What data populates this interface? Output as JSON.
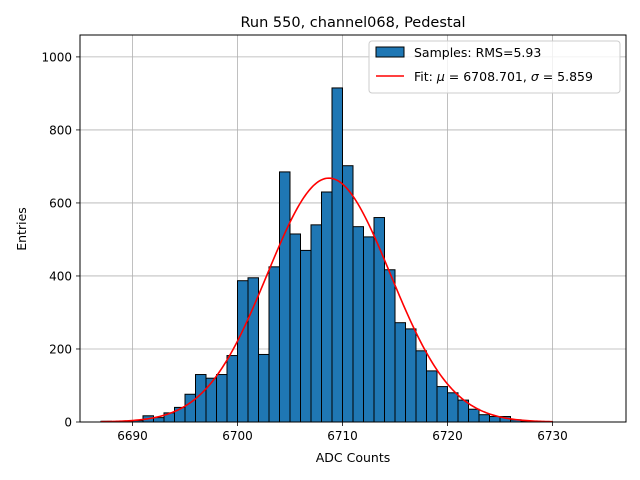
{
  "chart_data": {
    "type": "bar",
    "title": "Run 550, channel068, Pedestal",
    "xlabel": "ADC Counts",
    "ylabel": "Entries",
    "xlim": [
      6685,
      6737
    ],
    "ylim": [
      0,
      1060
    ],
    "xticks": [
      6690,
      6700,
      6710,
      6720,
      6730
    ],
    "yticks": [
      0,
      200,
      400,
      600,
      800,
      1000
    ],
    "grid": true,
    "legend_position": "top-right",
    "bin_width": 1,
    "colors": {
      "bars": "#1f77b4",
      "bar_edge": "#000000",
      "fit": "#ff0000",
      "grid": "#b0b0b0"
    },
    "series": [
      {
        "name": "Samples: RMS=5.93",
        "kind": "histogram",
        "bin_edges": [
          6687,
          6688,
          6689,
          6690,
          6691,
          6692,
          6693,
          6694,
          6695,
          6696,
          6697,
          6698,
          6699,
          6700,
          6701,
          6702,
          6703,
          6704,
          6705,
          6706,
          6707,
          6708,
          6709,
          6710,
          6711,
          6712,
          6713,
          6714,
          6715,
          6716,
          6717,
          6718,
          6719,
          6720,
          6721,
          6722,
          6723,
          6724,
          6725,
          6726,
          6727,
          6728,
          6729,
          6730,
          6731,
          6732,
          6733,
          6734
        ],
        "counts": [
          2,
          1,
          2,
          4,
          17,
          12,
          25,
          40,
          76,
          130,
          120,
          130,
          182,
          387,
          395,
          185,
          425,
          685,
          515,
          470,
          540,
          630,
          915,
          702,
          535,
          507,
          560,
          417,
          272,
          255,
          195,
          140,
          97,
          80,
          60,
          35,
          20,
          15,
          15,
          6,
          2,
          1,
          1,
          0,
          0,
          0,
          0
        ]
      },
      {
        "name": "Fit: $\\mu$ = 6708.701, $\\sigma$ = 5.859",
        "legend_parts": [
          "Fit: ",
          "μ",
          " = 6708.701, ",
          "σ",
          " = 5.859"
        ],
        "kind": "gaussian",
        "mu": 6708.701,
        "sigma": 5.859,
        "amplitude": 668,
        "x_range": [
          6687,
          6730
        ]
      }
    ]
  }
}
